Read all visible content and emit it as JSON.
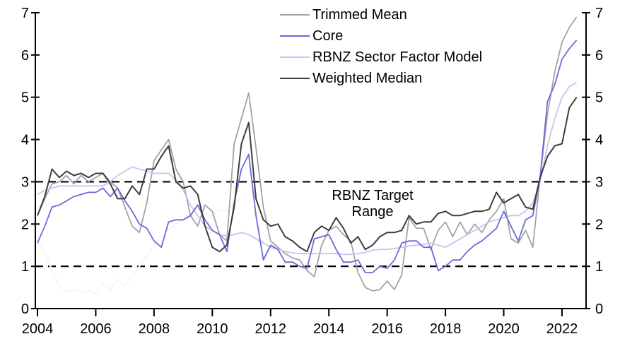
{
  "chart_data": {
    "type": "line",
    "title": "",
    "xlabel": "",
    "ylabel": "",
    "x_start": 2004.0,
    "x_step": 0.25,
    "xlim": [
      2003.9,
      2022.85
    ],
    "ylim": [
      0,
      7
    ],
    "grid": false,
    "legend_position": "top-center",
    "x_axis": {
      "tick_years": [
        2004,
        2006,
        2008,
        2010,
        2012,
        2014,
        2016,
        2018,
        2020,
        2022
      ],
      "tick_labels": [
        "2004",
        "2006",
        "2008",
        "2010",
        "2012",
        "2014",
        "2016",
        "2018",
        "2020",
        "2022"
      ]
    },
    "y_axis": {
      "ticks": [
        0,
        1,
        2,
        3,
        4,
        5,
        6,
        7
      ],
      "tick_labels": [
        "0",
        "1",
        "2",
        "3",
        "4",
        "5",
        "6",
        "7"
      ],
      "labels_on_both_sides": true
    },
    "target_range": {
      "lower": 1,
      "upper": 3,
      "line_style": "dashed",
      "color": "#000000",
      "label_lines": [
        "RBNZ Target",
        "Range"
      ]
    },
    "series": [
      {
        "name": "Trimmed Mean",
        "color": "#a3a3a3",
        "line_width": 1.8,
        "values": [
          2.2,
          2.6,
          2.95,
          3.0,
          3.15,
          2.95,
          3.15,
          3.0,
          3.1,
          3.2,
          3.0,
          2.85,
          2.4,
          1.95,
          1.8,
          2.5,
          3.5,
          3.75,
          4.0,
          3.3,
          3.0,
          2.2,
          1.95,
          2.45,
          2.3,
          1.75,
          1.6,
          3.9,
          4.5,
          5.1,
          3.8,
          2.4,
          1.6,
          1.45,
          1.3,
          1.2,
          1.15,
          0.9,
          0.75,
          1.5,
          1.85,
          1.95,
          1.75,
          1.6,
          0.85,
          0.5,
          0.42,
          0.45,
          0.65,
          0.45,
          0.8,
          2.15,
          1.9,
          1.9,
          1.4,
          1.85,
          2.05,
          1.7,
          2.05,
          1.75,
          2.0,
          1.8,
          2.1,
          2.3,
          2.6,
          1.65,
          1.55,
          1.85,
          1.45,
          3.1,
          4.6,
          5.6,
          6.3,
          6.65,
          6.9
        ]
      },
      {
        "name": "Core",
        "color": "#6b6bd8",
        "line_width": 1.8,
        "values": [
          1.55,
          1.95,
          2.4,
          2.45,
          2.55,
          2.65,
          2.7,
          2.75,
          2.75,
          2.85,
          2.65,
          2.85,
          2.55,
          2.3,
          2.0,
          1.9,
          1.6,
          1.45,
          2.05,
          2.1,
          2.1,
          2.2,
          2.45,
          2.1,
          1.85,
          1.75,
          1.35,
          2.5,
          3.3,
          3.65,
          2.2,
          1.15,
          1.5,
          1.4,
          1.1,
          1.1,
          1.0,
          0.95,
          1.65,
          1.7,
          1.75,
          1.4,
          1.1,
          1.1,
          1.15,
          0.85,
          0.85,
          1.0,
          0.95,
          1.15,
          1.55,
          1.6,
          1.6,
          1.45,
          1.45,
          0.9,
          1.0,
          1.15,
          1.15,
          1.35,
          1.5,
          1.6,
          1.75,
          1.9,
          2.3,
          1.95,
          1.6,
          2.1,
          2.2,
          3.1,
          4.9,
          5.3,
          5.9,
          6.15,
          6.35
        ]
      },
      {
        "name": "RBNZ Sector Factor Model",
        "color": "#c5c5f0",
        "line_width": 1.8,
        "values": [
          2.7,
          2.8,
          2.85,
          2.9,
          2.9,
          2.9,
          2.9,
          2.9,
          2.9,
          2.9,
          3.0,
          3.15,
          3.25,
          3.35,
          3.3,
          3.25,
          3.2,
          3.2,
          3.2,
          3.05,
          2.8,
          2.45,
          2.2,
          1.95,
          1.85,
          1.75,
          1.72,
          1.75,
          1.8,
          1.75,
          1.65,
          1.55,
          1.45,
          1.4,
          1.35,
          1.32,
          1.3,
          1.3,
          1.3,
          1.3,
          1.3,
          1.3,
          1.28,
          1.28,
          1.3,
          1.33,
          1.38,
          1.4,
          1.4,
          1.42,
          1.45,
          1.48,
          1.5,
          1.52,
          1.55,
          1.5,
          1.45,
          1.55,
          1.65,
          1.75,
          1.85,
          1.95,
          2.05,
          2.1,
          2.15,
          2.2,
          2.2,
          2.3,
          2.5,
          3.0,
          3.85,
          4.5,
          5.0,
          5.25,
          5.35
        ]
      },
      {
        "name": "Weighted Median",
        "color": "#3d3d3d",
        "line_width": 2.0,
        "values": [
          2.2,
          2.65,
          3.3,
          3.1,
          3.25,
          3.15,
          3.2,
          3.1,
          3.2,
          3.2,
          2.95,
          2.6,
          2.6,
          2.9,
          2.7,
          3.3,
          3.3,
          3.6,
          3.85,
          3.0,
          2.85,
          2.9,
          2.7,
          1.95,
          1.45,
          1.35,
          1.5,
          2.4,
          3.9,
          4.4,
          2.6,
          2.1,
          1.95,
          2.0,
          1.7,
          1.6,
          1.45,
          1.35,
          1.8,
          1.95,
          1.85,
          2.15,
          1.9,
          1.55,
          1.7,
          1.4,
          1.5,
          1.7,
          1.8,
          1.8,
          1.85,
          2.2,
          2.0,
          2.05,
          2.05,
          2.25,
          2.3,
          2.2,
          2.2,
          2.25,
          2.3,
          2.3,
          2.35,
          2.75,
          2.5,
          2.6,
          2.7,
          2.4,
          2.35,
          3.1,
          3.6,
          3.85,
          3.9,
          4.75,
          5.0
        ]
      }
    ],
    "ghost_series": {
      "name": "faint-background-line",
      "color": "#f7f7f7",
      "line_width": 2.5,
      "x_start": 2004.0,
      "x_step": 0.25,
      "values": [
        1.6,
        1.35,
        0.9,
        0.55,
        0.4,
        0.45,
        0.38,
        0.42,
        0.35,
        0.6,
        0.45,
        0.7,
        0.55,
        0.75,
        1.0,
        1.25,
        1.5,
        1.7,
        1.85,
        2.0,
        2.1,
        2.2,
        2.1,
        2.25,
        2.2,
        2.35,
        2.3,
        2.5,
        2.6
      ]
    }
  }
}
